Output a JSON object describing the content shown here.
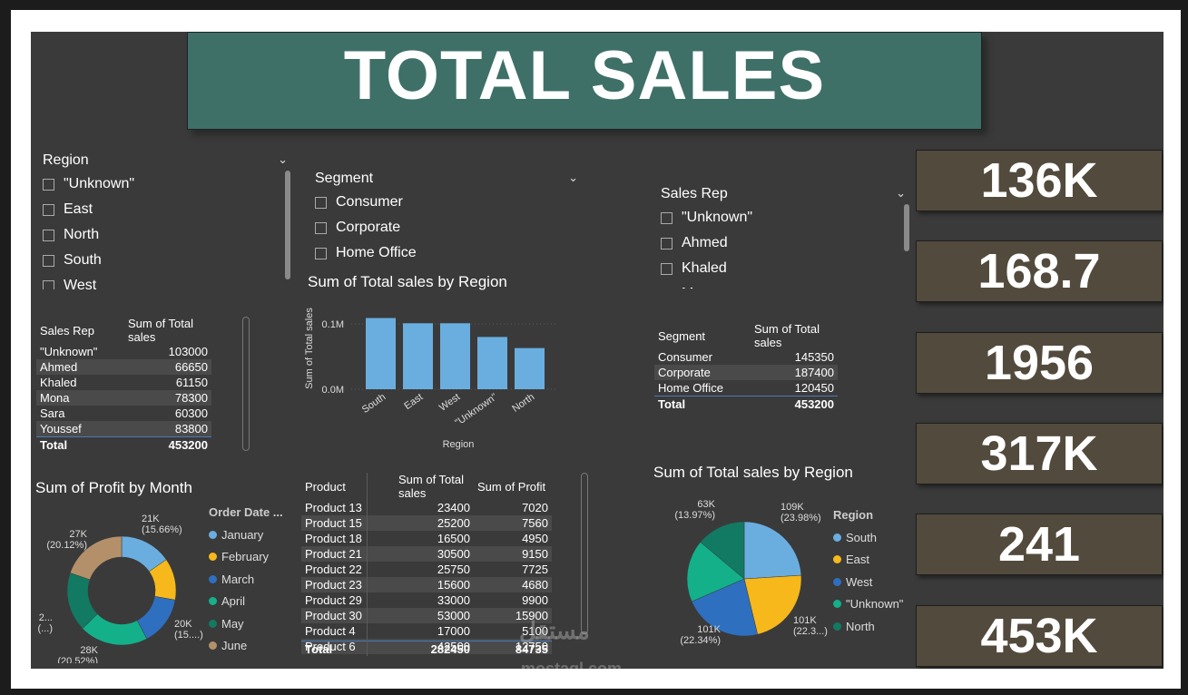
{
  "title": "TOTAL SALES",
  "region_slicer": {
    "title": "Region",
    "options": [
      "\"Unknown\"",
      "East",
      "North",
      "South",
      "West"
    ]
  },
  "segment_slicer": {
    "title": "Segment",
    "options": [
      "Consumer",
      "Corporate",
      "Home Office"
    ]
  },
  "salesrep_slicer": {
    "title": "Sales Rep",
    "options": [
      "\"Unknown\"",
      "Ahmed",
      "Khaled",
      "M"
    ]
  },
  "salesrep_table": {
    "headers": [
      "Sales Rep",
      "Sum of Total sales"
    ],
    "rows": [
      [
        "\"Unknown\"",
        "103000"
      ],
      [
        "Ahmed",
        "66650"
      ],
      [
        "Khaled",
        "61150"
      ],
      [
        "Mona",
        "78300"
      ],
      [
        "Sara",
        "60300"
      ],
      [
        "Youssef",
        "83800"
      ]
    ],
    "total": [
      "Total",
      "453200"
    ]
  },
  "segment_table": {
    "headers": [
      "Segment",
      "Sum of Total sales"
    ],
    "rows": [
      [
        "Consumer",
        "145350"
      ],
      [
        "Corporate",
        "187400"
      ],
      [
        "Home Office",
        "120450"
      ]
    ],
    "total": [
      "Total",
      "453200"
    ]
  },
  "product_table": {
    "headers": [
      "Product",
      "Sum of Total sales",
      "Sum of Profit"
    ],
    "rows": [
      [
        "Product 13",
        "23400",
        "7020"
      ],
      [
        "Product 15",
        "25200",
        "7560"
      ],
      [
        "Product 18",
        "16500",
        "4950"
      ],
      [
        "Product 21",
        "30500",
        "9150"
      ],
      [
        "Product 22",
        "25750",
        "7725"
      ],
      [
        "Product 23",
        "15600",
        "4680"
      ],
      [
        "Product 29",
        "33000",
        "9900"
      ],
      [
        "Product 30",
        "53000",
        "15900"
      ],
      [
        "Product 4",
        "17000",
        "5100"
      ],
      [
        "Product 6",
        "42500",
        "12750"
      ]
    ],
    "total": [
      "Total",
      "282450",
      "84735"
    ]
  },
  "kpis": [
    "136K",
    "168.7",
    "1956",
    "317K",
    "241",
    "453K"
  ],
  "watermark": {
    "arabic": "مستقل",
    "latin": "mostaql.com"
  },
  "colors": {
    "blue_light": "#6aaee0",
    "yellow": "#f6b81b",
    "blue": "#2e6fc0",
    "teal": "#14b08a",
    "dark_teal": "#127a62",
    "tan": "#b3906a"
  },
  "chart_data": [
    {
      "type": "bar",
      "title": "Sum of Total sales by Region",
      "xlabel": "Region",
      "ylabel": "Sum of Total sales",
      "categories": [
        "South",
        "East",
        "West",
        "\"Unknown\"",
        "North"
      ],
      "values": [
        109000,
        101000,
        101000,
        80000,
        63000
      ],
      "ylim": [
        0,
        125000
      ],
      "y_ticks": [
        {
          "value": 0,
          "label": "0.0M"
        },
        {
          "value": 100000,
          "label": "0.1M"
        }
      ],
      "color": "#6aaee0"
    },
    {
      "type": "pie",
      "subtype": "donut",
      "title": "Sum of Profit by Month",
      "legend_title": "Order Date ...",
      "labels": [
        "January",
        "February",
        "March",
        "April",
        "May",
        "June"
      ],
      "values": [
        21,
        17,
        20,
        28,
        24,
        27
      ],
      "slice_labels": [
        {
          "line1": "21K",
          "line2": "(15.66%)"
        },
        {
          "line1": "",
          "line2": ""
        },
        {
          "line1": "20K",
          "line2": "(15....)"
        },
        {
          "line1": "28K",
          "line2": "(20.52%)"
        },
        {
          "line1": "2...",
          "line2": "(...)"
        },
        {
          "line1": "27K",
          "line2": "(20.12%)"
        }
      ],
      "colors": [
        "#6aaee0",
        "#f6b81b",
        "#2e6fc0",
        "#14b08a",
        "#127a62",
        "#b3906a"
      ]
    },
    {
      "type": "pie",
      "title": "Sum of Total sales by Region",
      "legend_title": "Region",
      "labels": [
        "South",
        "East",
        "West",
        "\"Unknown\"",
        "North"
      ],
      "values": [
        109,
        101,
        101,
        80,
        63
      ],
      "slice_labels": [
        {
          "line1": "109K",
          "line2": "(23.98%)"
        },
        {
          "line1": "101K",
          "line2": "(22.3...)"
        },
        {
          "line1": "101K",
          "line2": "(22.34%)"
        },
        {
          "line1": "",
          "line2": ""
        },
        {
          "line1": "63K",
          "line2": "(13.97%)"
        }
      ],
      "colors": [
        "#6aaee0",
        "#f6b81b",
        "#2e6fc0",
        "#14b08a",
        "#127a62"
      ]
    }
  ]
}
